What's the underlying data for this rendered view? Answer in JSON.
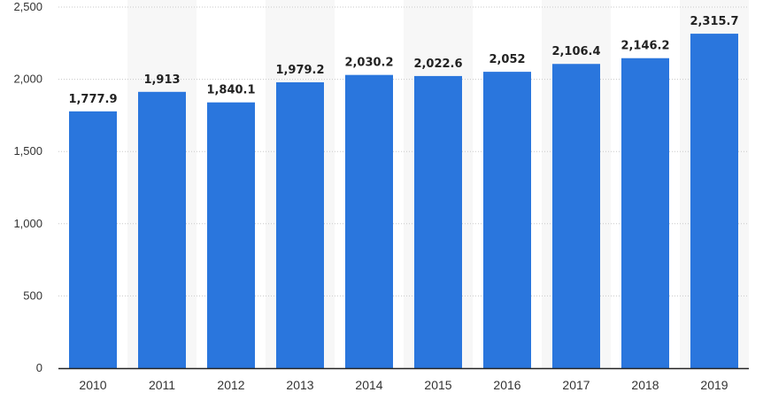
{
  "chart_data": {
    "type": "bar",
    "title": "",
    "xlabel": "",
    "ylabel": "",
    "categories": [
      "2010",
      "2011",
      "2012",
      "2013",
      "2014",
      "2015",
      "2016",
      "2017",
      "2018",
      "2019"
    ],
    "values": [
      1777.9,
      1913,
      1840.1,
      1979.2,
      2030.2,
      2022.6,
      2052,
      2106.4,
      2146.2,
      2315.7
    ],
    "value_labels": [
      "1,777.9",
      "1,913",
      "1,840.1",
      "1,979.2",
      "2,030.2",
      "2,022.6",
      "2,052",
      "2,106.4",
      "2,146.2",
      "2,315.7"
    ],
    "ylim": [
      0,
      2500
    ],
    "yticks": [
      0,
      500,
      1000,
      1500,
      2000,
      2500
    ],
    "ytick_labels": [
      "0",
      "500",
      "1,000",
      "1,500",
      "2,000",
      "2,500"
    ],
    "grid": true,
    "legend": "none",
    "colors": {
      "bar": "#2a76dd",
      "band": "#f7f7f7",
      "grid": "#c8c8c8",
      "axis": "#222222"
    }
  }
}
